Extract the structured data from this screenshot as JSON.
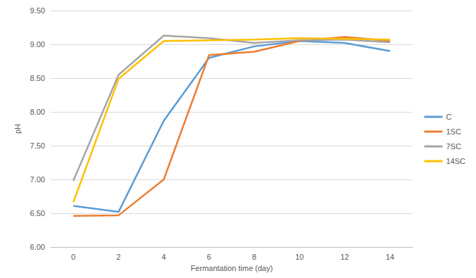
{
  "chart_data": {
    "type": "line",
    "x_label": "Fermantation time (day)",
    "y_label": "pH",
    "categories": [
      "0",
      "2",
      "4",
      "6",
      "8",
      "10",
      "12",
      "14"
    ],
    "series": [
      {
        "name": "C",
        "color": "#5b9bd5",
        "values": [
          6.61,
          6.52,
          7.87,
          8.8,
          8.97,
          9.05,
          9.02,
          8.9
        ]
      },
      {
        "name": "1SC",
        "color": "#ed7d31",
        "values": [
          6.46,
          6.47,
          7.0,
          8.84,
          8.89,
          9.05,
          9.11,
          9.05
        ]
      },
      {
        "name": "7SC",
        "color": "#a5a5a5",
        "values": [
          6.98,
          8.55,
          9.13,
          9.09,
          9.02,
          9.06,
          9.07,
          9.03
        ]
      },
      {
        "name": "14SC",
        "color": "#ffc000",
        "values": [
          6.66,
          8.49,
          9.05,
          9.06,
          9.07,
          9.09,
          9.08,
          9.07
        ]
      }
    ],
    "ylim": [
      6,
      9.5
    ],
    "yticks": [
      {
        "value": 6,
        "label": "6.00"
      },
      {
        "value": 6.5,
        "label": "6.50"
      },
      {
        "value": 7,
        "label": "7.00"
      },
      {
        "value": 7.5,
        "label": "7.50"
      },
      {
        "value": 8,
        "label": "8.00"
      },
      {
        "value": 8.5,
        "label": "8.50"
      },
      {
        "value": 9,
        "label": "9.00"
      },
      {
        "value": 9.5,
        "label": "9.50"
      }
    ],
    "grid": true,
    "legend": "right",
    "marker": "none"
  }
}
